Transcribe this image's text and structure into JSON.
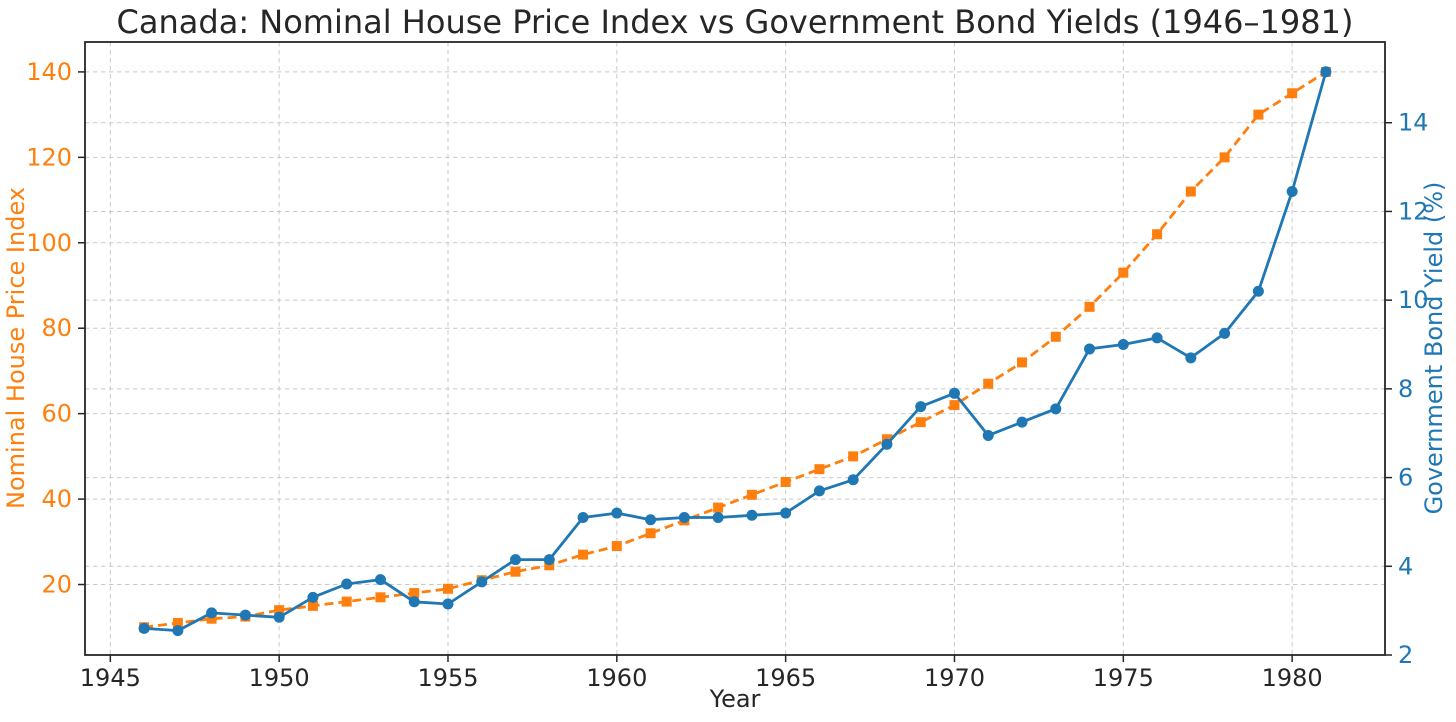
{
  "chart_data": {
    "type": "line",
    "title": "Canada: Nominal House Price Index vs Government Bond Yields (1946–1981)",
    "grid": true,
    "legend": "none",
    "x": [
      1946,
      1947,
      1948,
      1949,
      1950,
      1951,
      1952,
      1953,
      1954,
      1955,
      1956,
      1957,
      1958,
      1959,
      1960,
      1961,
      1962,
      1963,
      1964,
      1965,
      1966,
      1967,
      1968,
      1969,
      1970,
      1971,
      1972,
      1973,
      1974,
      1975,
      1976,
      1977,
      1978,
      1979,
      1980,
      1981
    ],
    "series": [
      {
        "name": "Nominal House Price Index",
        "axis": "left",
        "color": "#ff7f0e",
        "line_style": "dashed",
        "marker": "square",
        "values": [
          10,
          11,
          12,
          12.5,
          14,
          15,
          16,
          17,
          18,
          19,
          21,
          23,
          24.5,
          27,
          29,
          32,
          35,
          38,
          41,
          44,
          47,
          50,
          54,
          58,
          62,
          67,
          72,
          78,
          85,
          93,
          102,
          112,
          120,
          130,
          135,
          140
        ]
      },
      {
        "name": "Government Bond Yield (%)",
        "axis": "right",
        "color": "#1f77b4",
        "line_style": "solid",
        "marker": "circle",
        "values": [
          2.6,
          2.55,
          2.95,
          2.9,
          2.85,
          3.3,
          3.6,
          3.7,
          3.2,
          3.15,
          3.65,
          4.15,
          4.15,
          5.1,
          5.2,
          5.05,
          5.1,
          5.1,
          5.15,
          5.2,
          5.7,
          5.95,
          6.75,
          7.6,
          7.9,
          6.95,
          7.25,
          7.55,
          8.9,
          9.0,
          9.15,
          8.7,
          9.25,
          10.2,
          12.45,
          15.15
        ]
      }
    ],
    "x_axis": {
      "label": "Year",
      "ticks": [
        1945,
        1950,
        1955,
        1960,
        1965,
        1970,
        1975,
        1980
      ],
      "range": [
        1944.25,
        1982.75
      ],
      "color": "#262626"
    },
    "left_axis": {
      "label": "Nominal House Price Index",
      "ticks": [
        20,
        40,
        60,
        80,
        100,
        120,
        140
      ],
      "range": [
        3.5,
        147
      ],
      "color": "#ff7f0e"
    },
    "right_axis": {
      "label": "Government Bond Yield (%)",
      "ticks": [
        2,
        4,
        6,
        8,
        10,
        12,
        14
      ],
      "range": [
        2.0,
        15.82
      ],
      "color": "#1f77b4"
    }
  }
}
